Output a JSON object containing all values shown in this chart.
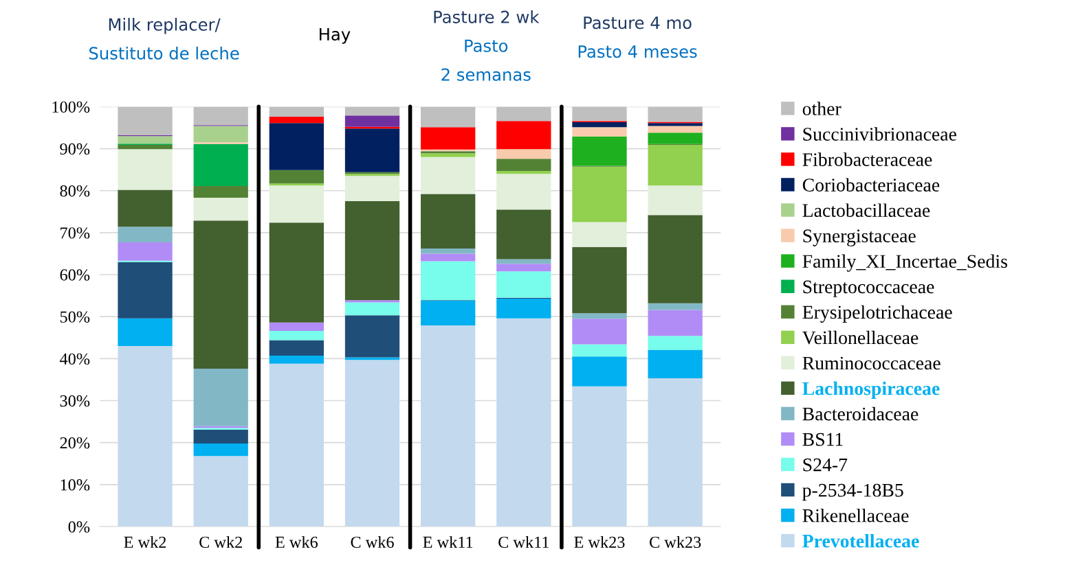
{
  "chart_data": {
    "type": "bar",
    "stacked": true,
    "categories": [
      "E wk2",
      "C wk2",
      "E wk6",
      "C wk6",
      "E wk11",
      "C wk11",
      "E wk23",
      "C wk23"
    ],
    "series": [
      {
        "name": "Prevotellaceae",
        "color": "#c3d9ee",
        "values": [
          43.0,
          16.8,
          38.8,
          39.7,
          47.9,
          49.6,
          33.4,
          35.3
        ]
      },
      {
        "name": "Rikenellaceae",
        "color": "#00b0f0",
        "values": [
          6.6,
          3.0,
          1.9,
          0.6,
          5.9,
          4.7,
          7.1,
          6.8
        ]
      },
      {
        "name": "p-2534-18B5",
        "color": "#1f4e79",
        "values": [
          13.4,
          3.3,
          3.7,
          10.0,
          0.1,
          0.2,
          0,
          0
        ]
      },
      {
        "name": "S24-7",
        "color": "#78fceb",
        "values": [
          0.3,
          0.4,
          2.2,
          3.1,
          9.3,
          6.3,
          2.9,
          3.3
        ]
      },
      {
        "name": "BS11",
        "color": "#b18cf6",
        "values": [
          4.4,
          0.4,
          2.0,
          0.5,
          1.8,
          1.8,
          6.1,
          6.2
        ]
      },
      {
        "name": "Bacteroidaceae",
        "color": "#82b8c6",
        "values": [
          3.7,
          13.7,
          0,
          0,
          1.2,
          1.1,
          1.3,
          1.6
        ]
      },
      {
        "name": "Lachnospiraceae",
        "color": "#43602f",
        "values": [
          8.8,
          35.3,
          23.8,
          23.6,
          13.0,
          11.8,
          15.8,
          21.0
        ]
      },
      {
        "name": "Ruminococcaceae",
        "color": "#e2efda",
        "values": [
          9.7,
          5.4,
          8.8,
          6.0,
          8.8,
          8.5,
          5.9,
          7.0
        ]
      },
      {
        "name": "Veillonellaceae",
        "color": "#92d050",
        "values": [
          0,
          0,
          0.5,
          0.5,
          0.9,
          0.7,
          13.2,
          9.7
        ]
      },
      {
        "name": "Erysipelotrichaceae",
        "color": "#548235",
        "values": [
          1.0,
          2.8,
          3.2,
          0.4,
          0.5,
          2.9,
          0.2,
          0.2
        ]
      },
      {
        "name": "Streptococcaceae",
        "color": "#00b050",
        "values": [
          0.3,
          10.0,
          0,
          0,
          0,
          0,
          0,
          0
        ]
      },
      {
        "name": "Family_XI_Incertae_Sedis",
        "color": "#1fb01f",
        "values": [
          0,
          0,
          0,
          0,
          0,
          0,
          7.0,
          2.7
        ]
      },
      {
        "name": "Synergistaceae",
        "color": "#f8cbad",
        "values": [
          0,
          0.4,
          0,
          0,
          0.4,
          2.3,
          2.2,
          1.6
        ]
      },
      {
        "name": "Lactobacillaceae",
        "color": "#a9d18e",
        "values": [
          1.8,
          3.9,
          0,
          0,
          0,
          0,
          0,
          0
        ]
      },
      {
        "name": "Coriobacteriaceae",
        "color": "#002060",
        "values": [
          0,
          0,
          11.2,
          10.4,
          0,
          0,
          1.2,
          0.7
        ]
      },
      {
        "name": "Fibrobacteraceae",
        "color": "#ff0000",
        "values": [
          0,
          0,
          1.5,
          0.4,
          5.3,
          6.7,
          0.3,
          0.3
        ]
      },
      {
        "name": "Succinivibrionaceae",
        "color": "#7030a0",
        "values": [
          0.2,
          0.2,
          0,
          2.7,
          0,
          0,
          0,
          0
        ]
      },
      {
        "name": "other",
        "color": "#bfbfbf",
        "values": [
          6.8,
          4.4,
          2.4,
          2.1,
          4.9,
          3.4,
          3.6,
          3.8
        ]
      }
    ],
    "ylim": [
      0,
      100
    ],
    "yticks": [
      {
        "value": 0,
        "label": "0%"
      },
      {
        "value": 10,
        "label": "10%"
      },
      {
        "value": 20,
        "label": "20%"
      },
      {
        "value": 30,
        "label": "30%"
      },
      {
        "value": 40,
        "label": "40%"
      },
      {
        "value": 50,
        "label": "50%"
      },
      {
        "value": 60,
        "label": "60%"
      },
      {
        "value": 70,
        "label": "70%"
      },
      {
        "value": 80,
        "label": "80%"
      },
      {
        "value": 90,
        "label": "90%"
      },
      {
        "value": 100,
        "label": "100%"
      }
    ],
    "grid": "y",
    "legend": "right",
    "annotations": [
      "Milk replacer/",
      "Sustituto de leche",
      "Hay",
      "Pasture 2 wk",
      "Pasto",
      "2 semanas",
      "Pasture 4 mo",
      "Pasto 4 meses"
    ]
  }
}
